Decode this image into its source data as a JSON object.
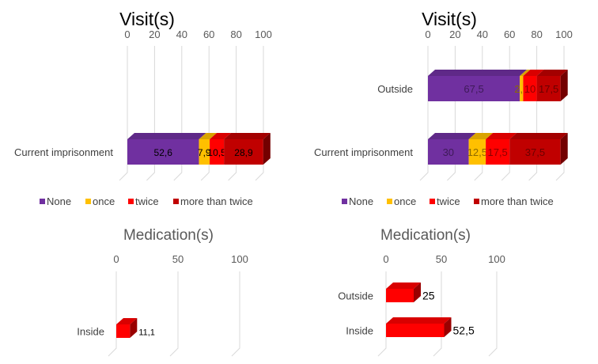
{
  "chart_data": [
    {
      "type": "bar",
      "orientation": "horizontal",
      "stacked": true,
      "title": "Visit(s)",
      "xlim": [
        0,
        100
      ],
      "ticks": [
        "0",
        "20",
        "40",
        "60",
        "80",
        "100"
      ],
      "categories": [
        "Current imprisonment"
      ],
      "series": [
        {
          "name": "None",
          "values": [
            52.6
          ],
          "labels": [
            "52,6"
          ]
        },
        {
          "name": "once",
          "values": [
            7.9
          ],
          "labels": [
            "7,9"
          ]
        },
        {
          "name": "twice",
          "values": [
            10.5
          ],
          "labels": [
            "10,5"
          ]
        },
        {
          "name": "more than twice",
          "values": [
            28.9
          ],
          "labels": [
            "28,9"
          ]
        }
      ],
      "legend": "bottom"
    },
    {
      "type": "bar",
      "orientation": "horizontal",
      "stacked": true,
      "title": "Visit(s)",
      "xlim": [
        0,
        100
      ],
      "ticks": [
        "0",
        "20",
        "40",
        "60",
        "80",
        "100"
      ],
      "categories": [
        "Outside",
        "Current imprisonment"
      ],
      "series": [
        {
          "name": "None",
          "values": [
            67.5,
            30
          ],
          "labels": [
            "67,5",
            "30"
          ]
        },
        {
          "name": "once",
          "values": [
            2.5,
            12.5
          ],
          "labels": [
            "2,5",
            "12,5"
          ]
        },
        {
          "name": "twice",
          "values": [
            10,
            17.5
          ],
          "labels": [
            "10",
            "17,5"
          ]
        },
        {
          "name": "more than twice",
          "values": [
            17.5,
            37.5
          ],
          "labels": [
            "17,5",
            "37,5"
          ]
        }
      ],
      "legend": "bottom"
    },
    {
      "type": "bar",
      "orientation": "horizontal",
      "title": "Medication(s)",
      "xlim": [
        0,
        100
      ],
      "ticks": [
        "0",
        "50",
        "100"
      ],
      "categories": [
        "Inside"
      ],
      "series": [
        {
          "values": [
            11.1
          ],
          "labels": [
            "11,1"
          ]
        }
      ]
    },
    {
      "type": "bar",
      "orientation": "horizontal",
      "title": "Medication(s)",
      "xlim": [
        0,
        100
      ],
      "ticks": [
        "0",
        "50",
        "100"
      ],
      "categories": [
        "Outside",
        "Inside"
      ],
      "series": [
        {
          "values": [
            25,
            52.5
          ],
          "labels": [
            "25",
            "52,5"
          ]
        }
      ]
    }
  ],
  "colors": {
    "None": "#7030a0",
    "once": "#ffc000",
    "twice": "#ff0000",
    "more than twice": "#c00000",
    "medication": "#ff0000"
  }
}
